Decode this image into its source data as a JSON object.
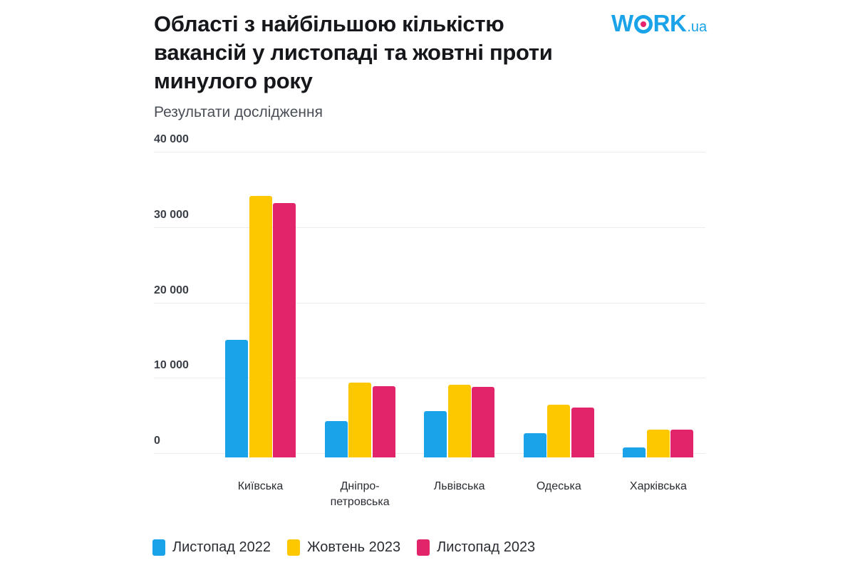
{
  "header": {
    "title": "Області з найбільшою кількістю вакансій у листопаді та жовтні проти минулого року",
    "subtitle": "Результати дослідження",
    "logo_main_left": "W",
    "logo_main_right": "RK",
    "logo_suffix": ".ua"
  },
  "colors": {
    "series_nov_2022": "#1aa3e8",
    "series_oct_2023": "#fdc800",
    "series_nov_2023": "#e2256a",
    "logo": "#1aa3e8"
  },
  "chart_data": {
    "type": "bar",
    "title": "Області з найбільшою кількістю вакансій у листопаді та жовтні проти минулого року",
    "subtitle": "Результати дослідження",
    "xlabel": "",
    "ylabel": "",
    "ylim": [
      0,
      40000
    ],
    "yticks": [
      0,
      10000,
      20000,
      30000,
      40000
    ],
    "ytick_labels": [
      "0",
      "10 000",
      "20 000",
      "30 000",
      "40 000"
    ],
    "grid": true,
    "legend_position": "bottom",
    "categories": [
      "Київська",
      "Дніпро-петровська",
      "Львівська",
      "Одеська",
      "Харківська"
    ],
    "category_labels": [
      [
        "Київська"
      ],
      [
        "Дніпро-",
        "петровська"
      ],
      [
        "Львівська"
      ],
      [
        "Одеська"
      ],
      [
        "Харківська"
      ]
    ],
    "series": [
      {
        "name": "Листопад 2022",
        "color": "#1aa3e8",
        "values": [
          15000,
          4250,
          5600,
          2650,
          800
        ]
      },
      {
        "name": "Жовтень 2023",
        "color": "#fdc800",
        "values": [
          34100,
          9350,
          9100,
          6400,
          3100
        ]
      },
      {
        "name": "Листопад 2023",
        "color": "#e2256a",
        "values": [
          33200,
          8900,
          8800,
          6050,
          3100
        ]
      }
    ]
  }
}
